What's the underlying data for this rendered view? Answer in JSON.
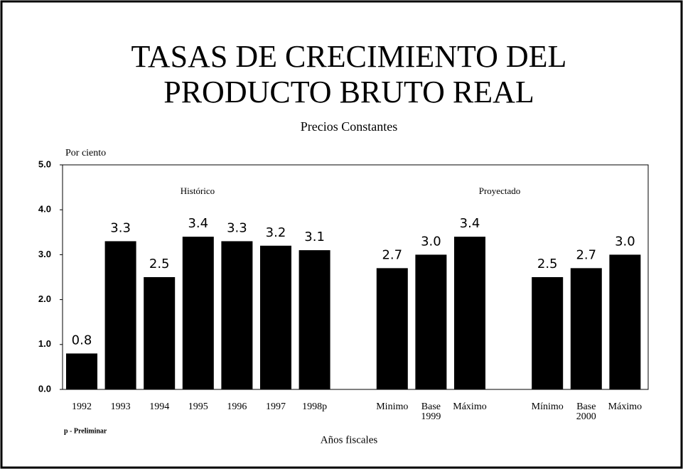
{
  "chart_data": {
    "type": "bar",
    "title": [
      "TASAS DE CRECIMIENTO DEL",
      "PRODUCTO BRUTO REAL"
    ],
    "subtitle": "Precios Constantes",
    "y_label": "Por ciento",
    "x_label": "Años fiscales",
    "note": "p - Preliminar",
    "sections": [
      "Histórico",
      "Proyectado"
    ],
    "scenario_years": [
      "1999",
      "2000"
    ],
    "categories": [
      "1992",
      "1993",
      "1994",
      "1995",
      "1996",
      "1997",
      "1998p",
      null,
      "Minimo",
      "Base",
      "Máximo",
      null,
      "Mínimo",
      "Base",
      "Máximo"
    ],
    "values": [
      0.8,
      3.3,
      2.5,
      3.4,
      3.3,
      3.2,
      3.1,
      null,
      2.7,
      3,
      3.4,
      null,
      2.5,
      2.7,
      3
    ],
    "value_labels": [
      "0.8",
      "3.3",
      "2.5",
      "3.4",
      "3.3",
      "3.2",
      "3.1",
      null,
      "2.7",
      "3.0",
      "3.4",
      null,
      "2.5",
      "2.7",
      "3.0"
    ],
    "color": "#000000",
    "ylim": [
      0,
      5
    ],
    "yticks": [
      {
        "value": 0,
        "label": "0.0"
      },
      {
        "value": 1,
        "label": "1.0"
      },
      {
        "value": 2,
        "label": "2.0"
      },
      {
        "value": 3,
        "label": "3.0"
      },
      {
        "value": 4,
        "label": "4.0"
      },
      {
        "value": 5,
        "label": "5.0"
      }
    ],
    "grid": false
  }
}
